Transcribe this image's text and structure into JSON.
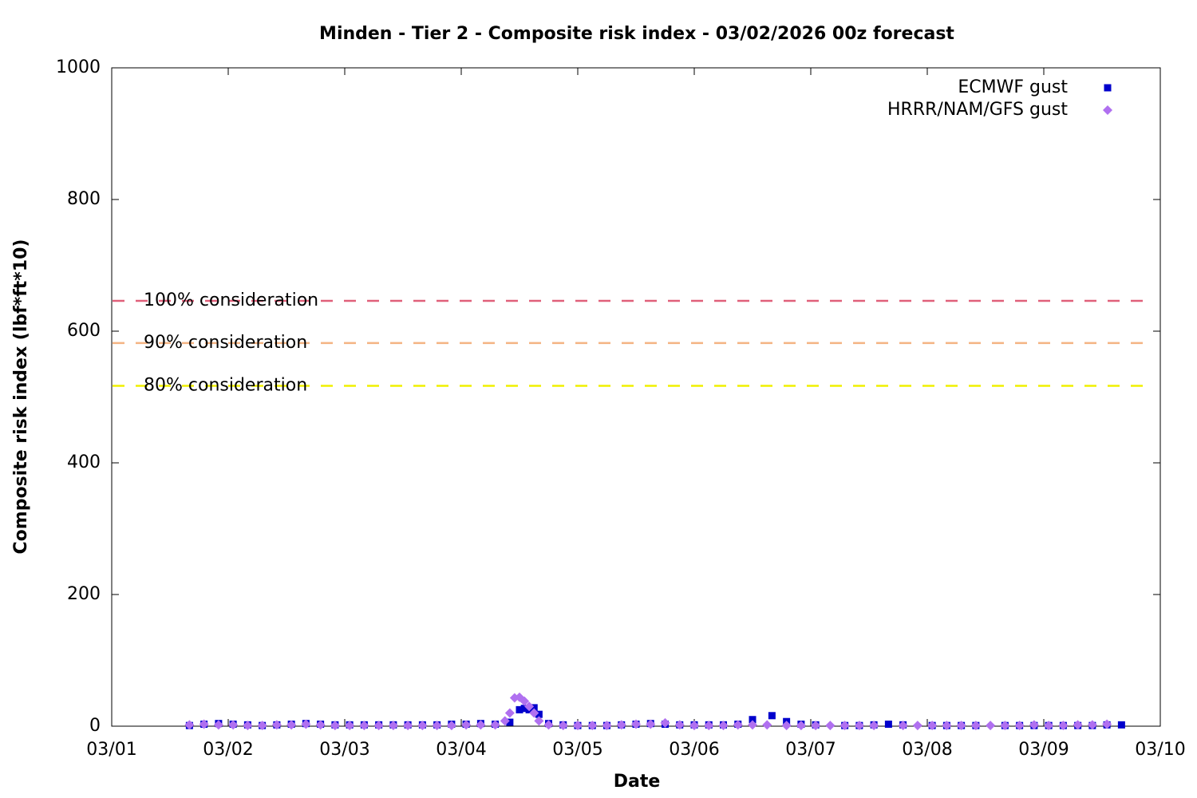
{
  "chart_data": {
    "type": "scatter",
    "title": "Minden - Tier 2 - Composite risk index - 03/02/2026 00z forecast",
    "x_label": "Date",
    "y_label": "Composite risk index (lbf*ft*10)",
    "xlim": [
      0,
      9
    ],
    "xticks": [
      {
        "value": 0,
        "label": "03/01"
      },
      {
        "value": 1,
        "label": "03/02"
      },
      {
        "value": 2,
        "label": "03/03"
      },
      {
        "value": 3,
        "label": "03/04"
      },
      {
        "value": 4,
        "label": "03/05"
      },
      {
        "value": 5,
        "label": "03/06"
      },
      {
        "value": 6,
        "label": "03/07"
      },
      {
        "value": 7,
        "label": "03/08"
      },
      {
        "value": 8,
        "label": "03/09"
      },
      {
        "value": 9,
        "label": "03/10"
      }
    ],
    "ylim": [
      0,
      1000
    ],
    "yticks": [
      0,
      200,
      400,
      600,
      800,
      1000
    ],
    "grid": false,
    "legend": "top-right",
    "reference_lines": [
      {
        "name": "100% consideration",
        "value": 646,
        "color": "#e0607a"
      },
      {
        "name": "90% consideration",
        "value": 582,
        "color": "#f4b483"
      },
      {
        "name": "80% consideration",
        "value": 517,
        "color": "#f0f000"
      }
    ],
    "series": [
      {
        "name": "ECMWF gust",
        "color": "#0000cc",
        "marker": "square",
        "x": [
          0.667,
          0.792,
          0.917,
          1.042,
          1.167,
          1.292,
          1.417,
          1.542,
          1.667,
          1.792,
          1.917,
          2.042,
          2.167,
          2.292,
          2.417,
          2.542,
          2.667,
          2.792,
          2.917,
          3.042,
          3.167,
          3.292,
          3.417,
          3.5,
          3.542,
          3.583,
          3.625,
          3.667,
          3.75,
          3.875,
          4.0,
          4.125,
          4.25,
          4.375,
          4.5,
          4.625,
          4.75,
          4.875,
          5.0,
          5.125,
          5.25,
          5.375,
          5.5,
          5.667,
          5.792,
          5.917,
          6.042,
          6.292,
          6.417,
          6.542,
          6.667,
          6.792,
          7.042,
          7.167,
          7.292,
          7.417,
          7.667,
          7.792,
          7.917,
          8.042,
          8.167,
          8.292,
          8.417,
          8.542,
          8.667
        ],
        "values": [
          1,
          3,
          4,
          3,
          2,
          1,
          2,
          3,
          4,
          3,
          2,
          2,
          2,
          2,
          2,
          2,
          2,
          2,
          3,
          3,
          4,
          3,
          6,
          25,
          27,
          25,
          28,
          18,
          4,
          2,
          1,
          1,
          1,
          2,
          3,
          4,
          3,
          2,
          2,
          2,
          2,
          3,
          10,
          16,
          7,
          3,
          2,
          1,
          1,
          2,
          3,
          2,
          1,
          1,
          1,
          1,
          1,
          1,
          1,
          1,
          1,
          1,
          1,
          2,
          2
        ]
      },
      {
        "name": "HRRR/NAM/GFS gust",
        "color": "#b070f0",
        "marker": "diamond",
        "x": [
          0.667,
          0.792,
          0.917,
          1.042,
          1.167,
          1.292,
          1.417,
          1.542,
          1.667,
          1.792,
          1.917,
          2.042,
          2.167,
          2.292,
          2.417,
          2.542,
          2.667,
          2.792,
          2.917,
          3.042,
          3.167,
          3.292,
          3.375,
          3.417,
          3.458,
          3.5,
          3.542,
          3.583,
          3.625,
          3.667,
          3.75,
          3.875,
          4.0,
          4.125,
          4.25,
          4.375,
          4.5,
          4.625,
          4.75,
          4.875,
          5.0,
          5.125,
          5.25,
          5.375,
          5.5,
          5.625,
          5.792,
          5.917,
          6.042,
          6.167,
          6.292,
          6.417,
          6.542,
          6.792,
          6.917,
          7.042,
          7.167,
          7.292,
          7.417,
          7.542,
          7.667,
          7.792,
          7.917,
          8.042,
          8.167,
          8.292,
          8.417,
          8.542
        ],
        "values": [
          2,
          3,
          2,
          2,
          1,
          1,
          2,
          2,
          3,
          2,
          1,
          1,
          1,
          1,
          1,
          1,
          1,
          1,
          1,
          2,
          2,
          2,
          8,
          20,
          43,
          44,
          38,
          30,
          20,
          8,
          2,
          1,
          1,
          1,
          1,
          2,
          3,
          3,
          5,
          2,
          1,
          1,
          1,
          2,
          2,
          2,
          1,
          1,
          1,
          1,
          1,
          1,
          1,
          1,
          1,
          1,
          1,
          1,
          1,
          1,
          1,
          1,
          2,
          1,
          1,
          2,
          2,
          3
        ]
      }
    ]
  }
}
